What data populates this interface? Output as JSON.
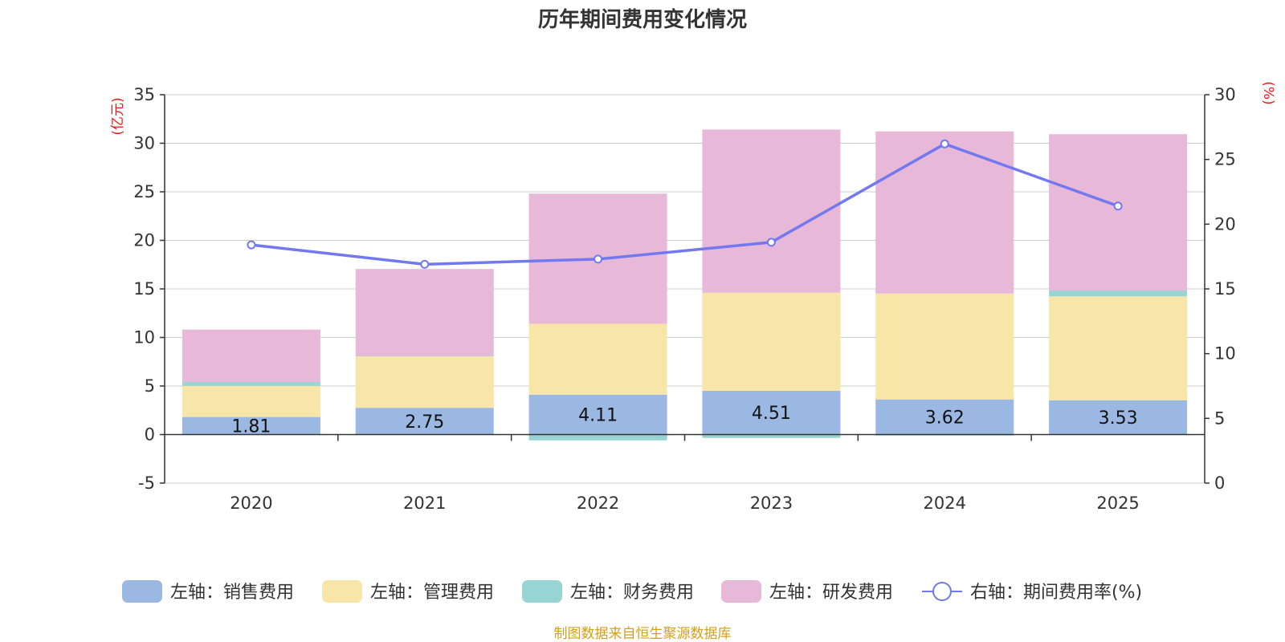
{
  "chart_data": {
    "type": "bar",
    "title": "历年期间费用变化情况",
    "categories": [
      "2020",
      "2021",
      "2022",
      "2023",
      "2024",
      "2025"
    ],
    "left_axis": {
      "unit_label": "(亿元)",
      "ylim": [
        -5,
        35
      ],
      "ticks": [
        "35",
        "30",
        "25",
        "20",
        "15",
        "10",
        "5",
        "0",
        "-5"
      ]
    },
    "right_axis": {
      "unit_label": "(%)",
      "ylim": [
        0,
        30
      ],
      "ticks": [
        "30",
        "25",
        "20",
        "15",
        "10",
        "5",
        "0"
      ]
    },
    "series": [
      {
        "name": "左轴：销售费用",
        "axis": "left",
        "stack": true,
        "color": "#9bb8e3",
        "values": [
          1.81,
          2.75,
          4.11,
          4.51,
          3.62,
          3.53
        ],
        "labels": [
          "1.81",
          "2.75",
          "4.11",
          "4.51",
          "3.62",
          "3.53"
        ]
      },
      {
        "name": "左轴：管理费用",
        "axis": "left",
        "stack": true,
        "color": "#f8e6a8",
        "values": [
          3.2,
          5.3,
          7.3,
          10.1,
          10.9,
          10.7
        ]
      },
      {
        "name": "左轴：财务费用",
        "axis": "left",
        "stack": true,
        "color": "#97d5d4",
        "values": [
          0.4,
          0.05,
          -0.6,
          -0.35,
          -0.1,
          0.6
        ]
      },
      {
        "name": "左轴：研发费用",
        "axis": "left",
        "stack": true,
        "color": "#e8b8d9",
        "values": [
          5.4,
          8.95,
          13.4,
          16.8,
          16.7,
          16.1
        ]
      },
      {
        "name": "右轴：期间费用率(%)",
        "axis": "right",
        "type": "line",
        "color": "#7279ee",
        "values": [
          18.4,
          16.9,
          17.3,
          18.6,
          26.2,
          21.4
        ]
      }
    ],
    "source_text": "制图数据来自恒生聚源数据库",
    "colors": {
      "axis": "#333333",
      "grid": "#cccccc",
      "unit": "#e8191a",
      "source": "#d4a017"
    }
  }
}
